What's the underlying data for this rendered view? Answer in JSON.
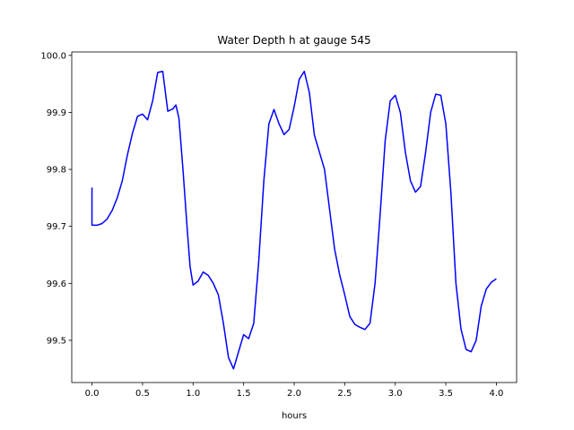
{
  "chart_data": {
    "type": "line",
    "title": "Water Depth h at gauge 545",
    "xlabel": "hours",
    "ylabel": "",
    "xlim": [
      -0.2,
      4.2
    ],
    "ylim": [
      99.426,
      100.006
    ],
    "xticks": [
      0.0,
      0.5,
      1.0,
      1.5,
      2.0,
      2.5,
      3.0,
      3.5,
      4.0
    ],
    "xtick_labels": [
      "0.0",
      "0.5",
      "1.0",
      "1.5",
      "2.0",
      "2.5",
      "3.0",
      "3.5",
      "4.0"
    ],
    "yticks": [
      99.5,
      99.6,
      99.7,
      99.8,
      99.9,
      100.0
    ],
    "ytick_labels": [
      "99.5",
      "99.6",
      "99.7",
      "99.8",
      "99.9",
      "100.0"
    ],
    "grid": false,
    "series": [
      {
        "name": "",
        "color": "#0000ff",
        "points": [
          [
            0.0,
            99.768
          ],
          [
            0.0,
            99.702
          ],
          [
            0.05,
            99.702
          ],
          [
            0.1,
            99.705
          ],
          [
            0.15,
            99.713
          ],
          [
            0.2,
            99.728
          ],
          [
            0.25,
            99.75
          ],
          [
            0.3,
            99.78
          ],
          [
            0.35,
            99.825
          ],
          [
            0.4,
            99.863
          ],
          [
            0.45,
            99.893
          ],
          [
            0.5,
            99.897
          ],
          [
            0.55,
            99.887
          ],
          [
            0.6,
            99.92
          ],
          [
            0.65,
            99.97
          ],
          [
            0.7,
            99.972
          ],
          [
            0.75,
            99.902
          ],
          [
            0.8,
            99.906
          ],
          [
            0.83,
            99.913
          ],
          [
            0.86,
            99.89
          ],
          [
            0.9,
            99.8
          ],
          [
            0.94,
            99.7
          ],
          [
            0.97,
            99.63
          ],
          [
            1.0,
            99.597
          ],
          [
            1.05,
            99.604
          ],
          [
            1.1,
            99.62
          ],
          [
            1.15,
            99.614
          ],
          [
            1.2,
            99.6
          ],
          [
            1.25,
            99.58
          ],
          [
            1.3,
            99.53
          ],
          [
            1.35,
            99.47
          ],
          [
            1.4,
            99.45
          ],
          [
            1.45,
            99.48
          ],
          [
            1.5,
            99.51
          ],
          [
            1.55,
            99.503
          ],
          [
            1.6,
            99.53
          ],
          [
            1.65,
            99.64
          ],
          [
            1.7,
            99.78
          ],
          [
            1.75,
            99.88
          ],
          [
            1.8,
            99.905
          ],
          [
            1.85,
            99.88
          ],
          [
            1.9,
            99.861
          ],
          [
            1.95,
            99.87
          ],
          [
            2.0,
            99.91
          ],
          [
            2.05,
            99.958
          ],
          [
            2.1,
            99.972
          ],
          [
            2.15,
            99.935
          ],
          [
            2.2,
            99.86
          ],
          [
            2.25,
            99.83
          ],
          [
            2.3,
            99.8
          ],
          [
            2.35,
            99.73
          ],
          [
            2.4,
            99.66
          ],
          [
            2.45,
            99.615
          ],
          [
            2.5,
            99.58
          ],
          [
            2.55,
            99.542
          ],
          [
            2.6,
            99.528
          ],
          [
            2.65,
            99.523
          ],
          [
            2.7,
            99.519
          ],
          [
            2.75,
            99.53
          ],
          [
            2.8,
            99.6
          ],
          [
            2.85,
            99.72
          ],
          [
            2.9,
            99.85
          ],
          [
            2.95,
            99.92
          ],
          [
            3.0,
            99.93
          ],
          [
            3.05,
            99.9
          ],
          [
            3.1,
            99.83
          ],
          [
            3.15,
            99.78
          ],
          [
            3.2,
            99.76
          ],
          [
            3.25,
            99.77
          ],
          [
            3.3,
            99.83
          ],
          [
            3.35,
            99.9
          ],
          [
            3.4,
            99.932
          ],
          [
            3.45,
            99.93
          ],
          [
            3.5,
            99.88
          ],
          [
            3.55,
            99.76
          ],
          [
            3.6,
            99.6
          ],
          [
            3.65,
            99.52
          ],
          [
            3.7,
            99.484
          ],
          [
            3.75,
            99.48
          ],
          [
            3.8,
            99.5
          ],
          [
            3.85,
            99.56
          ],
          [
            3.9,
            99.59
          ],
          [
            3.95,
            99.602
          ],
          [
            4.0,
            99.608
          ]
        ]
      }
    ]
  }
}
